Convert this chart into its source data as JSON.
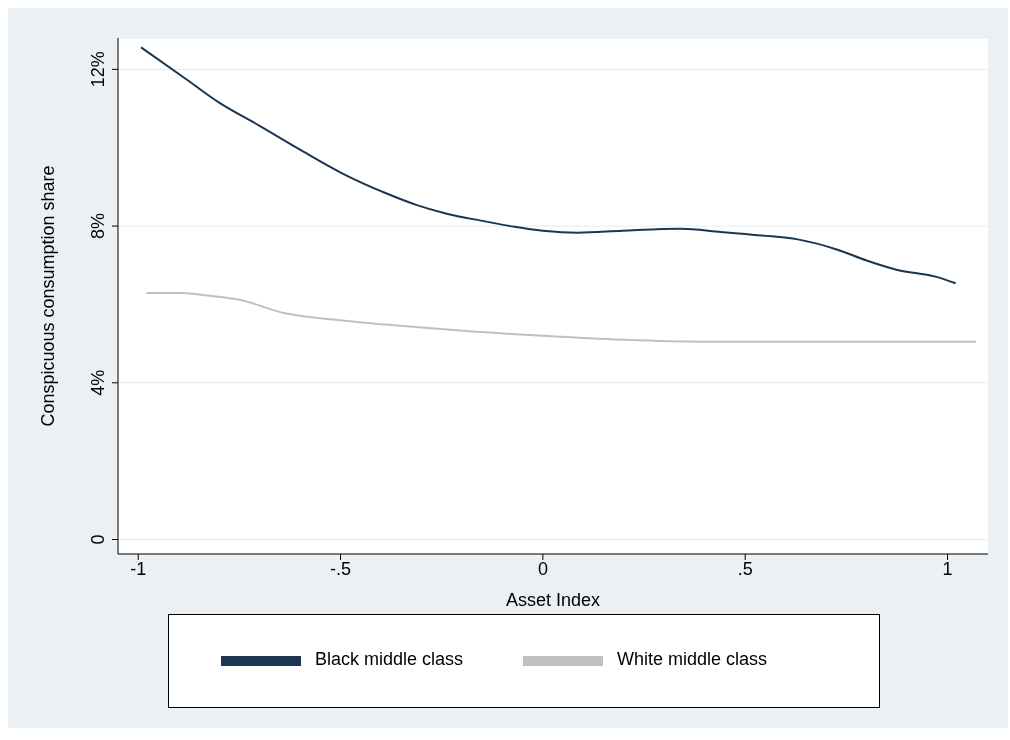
{
  "chart_data": {
    "type": "line",
    "xlabel": "Asset Index",
    "ylabel": "Conspicuous consumption share",
    "xlim": [
      -1.05,
      1.1
    ],
    "ylim": [
      -0.37,
      12.8
    ],
    "xticks": [
      -1,
      {
        "value": -0.5,
        "label": "-.5"
      },
      0,
      {
        "value": 0.5,
        "label": ".5"
      },
      1
    ],
    "yticks": [
      0,
      {
        "value": 4,
        "label": "4%"
      },
      {
        "value": 8,
        "label": "8%"
      },
      {
        "value": 12,
        "label": "12%"
      }
    ],
    "grid": "y",
    "legend": "bottom",
    "marker": "none",
    "line_style": "solid",
    "series": [
      {
        "name": "Black middle class",
        "color": "#1a3651",
        "x": [
          -0.993,
          -0.883,
          -0.8,
          -0.7,
          -0.6,
          -0.495,
          -0.386,
          -0.313,
          -0.24,
          -0.143,
          -0.07,
          0,
          0.087,
          0.197,
          0.34,
          0.44,
          0.54,
          0.63,
          0.73,
          0.8,
          0.876,
          0.97,
          1.02
        ],
        "values": [
          12.56,
          11.76,
          11.15,
          10.56,
          9.95,
          9.34,
          8.83,
          8.54,
          8.32,
          8.12,
          7.98,
          7.88,
          7.83,
          7.88,
          7.93,
          7.85,
          7.76,
          7.66,
          7.39,
          7.12,
          6.88,
          6.71,
          6.54
        ]
      },
      {
        "name": "White middle class",
        "color": "#c0c0c0",
        "x": [
          -0.98,
          -0.896,
          -0.823,
          -0.75,
          -0.64,
          -0.495,
          -0.337,
          -0.19,
          0,
          0.197,
          0.39,
          0.63,
          1.07
        ],
        "values": [
          6.29,
          6.29,
          6.22,
          6.12,
          5.78,
          5.59,
          5.44,
          5.32,
          5.2,
          5.1,
          5.05,
          5.05,
          5.05
        ]
      }
    ]
  }
}
